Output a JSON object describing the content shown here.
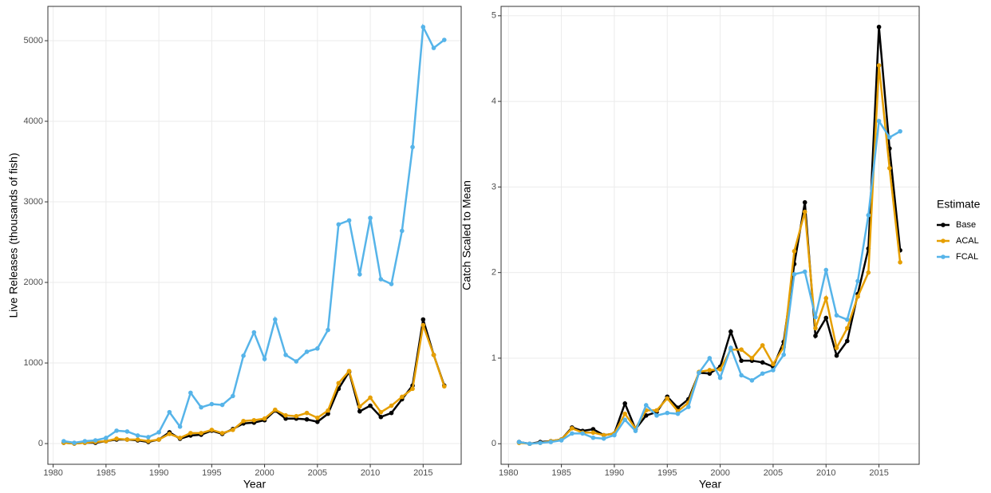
{
  "chart_data": [
    {
      "type": "line",
      "xlabel": "Year",
      "ylabel": "Live Releases (thousands of fish)",
      "x": [
        1981,
        1982,
        1983,
        1984,
        1985,
        1986,
        1987,
        1988,
        1989,
        1990,
        1991,
        1992,
        1993,
        1994,
        1995,
        1996,
        1997,
        1998,
        1999,
        2000,
        2001,
        2002,
        2003,
        2004,
        2005,
        2006,
        2007,
        2008,
        2009,
        2010,
        2011,
        2012,
        2013,
        2014,
        2015,
        2016,
        2017
      ],
      "xlim": [
        1979.5,
        2018.6
      ],
      "xticks": [
        1980,
        1985,
        1990,
        1995,
        2000,
        2005,
        2010,
        2015
      ],
      "ylim": [
        -257,
        5426
      ],
      "yticks": [
        0,
        1000,
        2000,
        3000,
        4000,
        5000
      ],
      "grid": true,
      "series": [
        {
          "name": "Base",
          "color": "#000000",
          "values": [
            10,
            0,
            10,
            10,
            30,
            50,
            50,
            40,
            20,
            50,
            140,
            60,
            100,
            110,
            160,
            120,
            180,
            250,
            260,
            290,
            410,
            310,
            310,
            300,
            270,
            370,
            680,
            890,
            400,
            470,
            330,
            380,
            550,
            720,
            1540,
            1100,
            720
          ]
        },
        {
          "name": "ACAL",
          "color": "#E69F00",
          "values": [
            10,
            0,
            10,
            20,
            30,
            60,
            50,
            50,
            30,
            50,
            120,
            70,
            130,
            130,
            170,
            130,
            170,
            280,
            290,
            310,
            420,
            350,
            340,
            380,
            320,
            410,
            750,
            900,
            460,
            570,
            390,
            470,
            580,
            680,
            1470,
            1100,
            710
          ]
        },
        {
          "name": "FCAL",
          "color": "#56B4E9",
          "values": [
            30,
            10,
            30,
            40,
            70,
            160,
            150,
            100,
            80,
            140,
            390,
            210,
            630,
            450,
            490,
            480,
            590,
            1090,
            1380,
            1050,
            1540,
            1100,
            1020,
            1140,
            1180,
            1410,
            2720,
            2770,
            2100,
            2800,
            2040,
            1980,
            2640,
            3680,
            5170,
            4910,
            5010
          ]
        }
      ]
    },
    {
      "type": "line",
      "xlabel": "Year",
      "ylabel": "Catch Scaled to Mean",
      "x": [
        1981,
        1982,
        1983,
        1984,
        1985,
        1986,
        1987,
        1988,
        1989,
        1990,
        1991,
        1992,
        1993,
        1994,
        1995,
        1996,
        1997,
        1998,
        1999,
        2000,
        2001,
        2002,
        2003,
        2004,
        2005,
        2006,
        2007,
        2008,
        2009,
        2010,
        2011,
        2012,
        2013,
        2014,
        2015,
        2016,
        2017
      ],
      "xlim": [
        1979.3,
        2018.8
      ],
      "xticks": [
        1980,
        1985,
        1990,
        1995,
        2000,
        2005,
        2010,
        2015
      ],
      "ylim": [
        -0.24,
        5.11
      ],
      "yticks": [
        0,
        1,
        2,
        3,
        4,
        5
      ],
      "grid": true,
      "legend": "right",
      "legend_title": "Estimate",
      "series": [
        {
          "name": "Base",
          "color": "#000000",
          "values": [
            0.02,
            0.0,
            0.02,
            0.03,
            0.05,
            0.19,
            0.15,
            0.17,
            0.1,
            0.12,
            0.47,
            0.17,
            0.33,
            0.37,
            0.55,
            0.42,
            0.52,
            0.83,
            0.82,
            0.9,
            1.31,
            0.97,
            0.97,
            0.95,
            0.9,
            1.19,
            2.1,
            2.82,
            1.26,
            1.47,
            1.03,
            1.2,
            1.75,
            2.28,
            4.87,
            3.45,
            2.26
          ]
        },
        {
          "name": "ACAL",
          "color": "#E69F00",
          "values": [
            0.01,
            0.0,
            0.01,
            0.03,
            0.05,
            0.18,
            0.13,
            0.13,
            0.1,
            0.12,
            0.35,
            0.18,
            0.39,
            0.39,
            0.53,
            0.38,
            0.48,
            0.84,
            0.86,
            0.87,
            1.1,
            1.1,
            1.0,
            1.15,
            0.93,
            1.13,
            2.25,
            2.71,
            1.35,
            1.7,
            1.12,
            1.35,
            1.72,
            2.0,
            4.42,
            3.22,
            2.12
          ]
        },
        {
          "name": "FCAL",
          "color": "#56B4E9",
          "values": [
            0.02,
            0.0,
            0.01,
            0.02,
            0.04,
            0.12,
            0.12,
            0.07,
            0.06,
            0.1,
            0.28,
            0.15,
            0.45,
            0.33,
            0.36,
            0.35,
            0.43,
            0.83,
            1.0,
            0.77,
            1.12,
            0.8,
            0.74,
            0.82,
            0.86,
            1.04,
            1.98,
            2.01,
            1.48,
            2.03,
            1.5,
            1.45,
            1.9,
            2.67,
            3.77,
            3.58,
            3.65
          ]
        }
      ]
    }
  ]
}
